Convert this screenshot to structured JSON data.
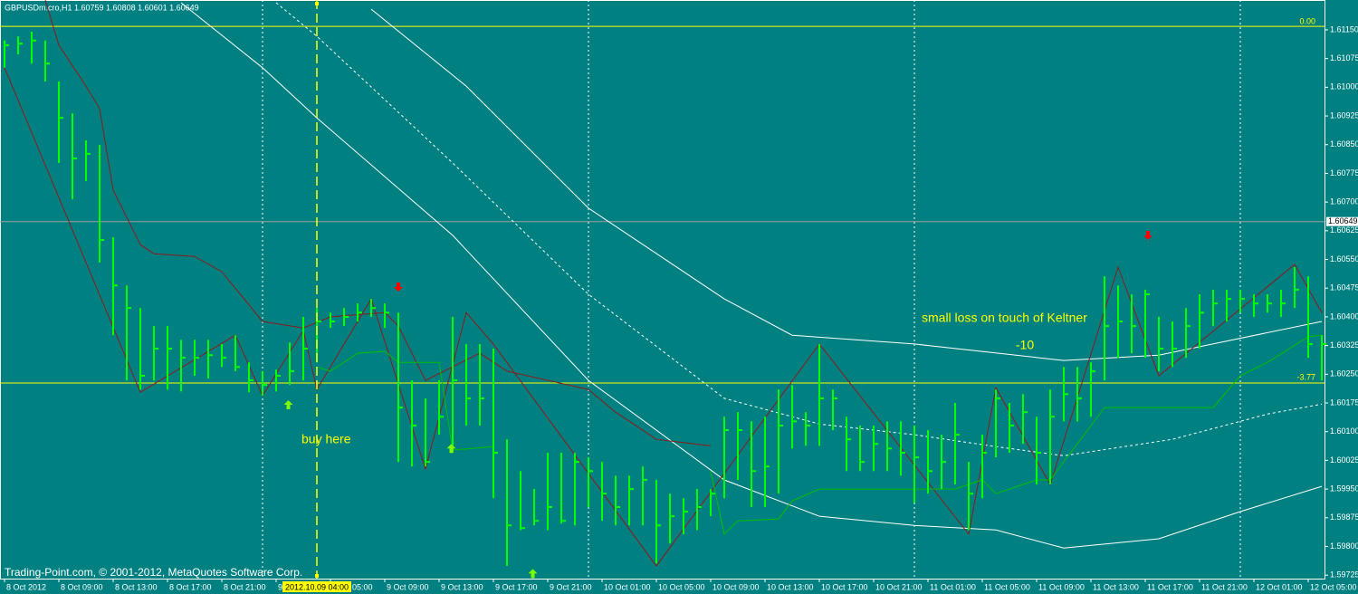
{
  "chart_data": {
    "type": "ohlc",
    "title": "GBPUSDm.cro,H1  1.60759 1.60808 1.60601 1.60649",
    "footer": "Trading-Point.com, © 2001-2012, MetaQuotes Software Corp.",
    "xlim": [
      -0.333,
      97.2
    ],
    "ylim": [
      1.59716,
      1.61228
    ],
    "xticks": [
      {
        "value": 0,
        "label": "8 Oct 2012"
      },
      {
        "value": 4,
        "label": "8 Oct 09:00"
      },
      {
        "value": 8,
        "label": "8 Oct 13:00"
      },
      {
        "value": 12,
        "label": "8 Oct 17:00"
      },
      {
        "value": 16,
        "label": "8 Oct 21:00"
      },
      {
        "value": 20,
        "label": "9"
      },
      {
        "value": 24,
        "label": "05:00"
      },
      {
        "value": 28,
        "label": "9 Oct 09:00"
      },
      {
        "value": 32,
        "label": "9 Oct 13:00"
      },
      {
        "value": 36,
        "label": "9 Oct 17:00"
      },
      {
        "value": 40,
        "label": "9 Oct 21:00"
      },
      {
        "value": 44,
        "label": "10 Oct 01:00"
      },
      {
        "value": 48,
        "label": "10 Oct 05:00"
      },
      {
        "value": 52,
        "label": "10 Oct 09:00"
      },
      {
        "value": 56,
        "label": "10 Oct 13:00"
      },
      {
        "value": 60,
        "label": "10 Oct 17:00"
      },
      {
        "value": 64,
        "label": "10 Oct 21:00"
      },
      {
        "value": 68,
        "label": "11 Oct 01:00"
      },
      {
        "value": 72,
        "label": "11 Oct 05:00"
      },
      {
        "value": 76,
        "label": "11 Oct 09:00"
      },
      {
        "value": 80,
        "label": "11 Oct 13:00"
      },
      {
        "value": 84,
        "label": "11 Oct 17:00"
      },
      {
        "value": 88,
        "label": "11 Oct 21:00"
      },
      {
        "value": 92,
        "label": "12 Oct 01:00"
      },
      {
        "value": 96,
        "label": "12 Oct 05:00"
      }
    ],
    "yticks": [
      {
        "value": 1.6115,
        "label": "1.61150"
      },
      1.61075,
      {
        "value": 1.61,
        "label": "1.61000"
      },
      1.60925,
      {
        "value": 1.6085,
        "label": "1.60850"
      },
      1.60775,
      {
        "value": 1.607,
        "label": "1.60700"
      },
      1.60625,
      {
        "value": 1.6055,
        "label": "1.60550"
      },
      1.60475,
      {
        "value": 1.604,
        "label": "1.60400"
      },
      1.60325,
      {
        "value": 1.6025,
        "label": "1.60250"
      },
      1.60175,
      {
        "value": 1.601,
        "label": "1.60100"
      },
      1.60025,
      {
        "value": 1.5995,
        "label": "1.59950"
      },
      1.59875,
      {
        "value": 1.598,
        "label": "1.59800"
      },
      1.59725
    ],
    "color": "#00ff00",
    "high": [
      1.61122,
      1.61133,
      1.61145,
      1.61122,
      1.61015,
      1.60932,
      1.60861,
      1.60849,
      1.60608,
      1.60482,
      1.60423,
      1.60376,
      1.60376,
      1.6034,
      1.6034,
      1.6034,
      1.60329,
      1.60352,
      1.60281,
      1.60258,
      1.60262,
      1.60333,
      1.604,
      1.60423,
      1.60411,
      1.60423,
      1.60435,
      1.60447,
      1.60435,
      1.60411,
      1.60234,
      1.60187,
      1.60234,
      1.604,
      1.60329,
      1.60329,
      1.60317,
      1.6008,
      1.59997,
      1.5995,
      1.60045,
      1.60045,
      1.60045,
      1.60033,
      1.60021,
      1.59985,
      1.59985,
      1.60009,
      1.59974,
      1.59938,
      1.59926,
      1.5995,
      1.5995,
      1.60139,
      1.60151,
      1.60127,
      1.60139,
      1.6021,
      1.60222,
      1.60151,
      1.60329,
      1.6021,
      1.60139,
      1.60116,
      1.60116,
      1.60127,
      1.60127,
      1.60116,
      1.60104,
      1.60092,
      1.60175,
      1.60021,
      1.60092,
      1.6021,
      1.60175,
      1.60198,
      1.60139,
      1.6021,
      1.60269,
      1.60269,
      1.60281,
      1.60506,
      1.60482,
      1.60459,
      1.60471,
      1.604,
      1.60388,
      1.60423,
      1.60459,
      1.60471,
      1.60471,
      1.60471,
      1.60459,
      1.60459,
      1.60471,
      1.6053,
      1.60506,
      1.60352
    ],
    "low": [
      1.61051,
      1.61086,
      1.61062,
      1.61015,
      1.60802,
      1.60707,
      1.60755,
      1.60542,
      1.60352,
      1.60234,
      1.6021,
      1.60234,
      1.6021,
      1.60205,
      1.60246,
      1.60239,
      1.60269,
      1.60258,
      1.60203,
      1.60194,
      1.60205,
      1.60222,
      1.60234,
      1.60281,
      1.60371,
      1.60376,
      1.60388,
      1.604,
      1.60371,
      1.60021,
      1.60009,
      1.60009,
      1.60092,
      1.60045,
      1.60116,
      1.60116,
      1.59926,
      1.59749,
      1.59843,
      1.59855,
      1.59843,
      1.5986,
      1.59855,
      1.59903,
      1.59867,
      1.59855,
      1.59855,
      1.59855,
      1.59756,
      1.59808,
      1.59832,
      1.59843,
      1.59879,
      1.59926,
      1.59974,
      1.59903,
      1.59903,
      1.59938,
      1.60056,
      1.60063,
      1.60063,
      1.60104,
      1.59997,
      1.59997,
      1.59997,
      1.59997,
      1.59985,
      1.59914,
      1.59938,
      1.5995,
      1.59962,
      1.59843,
      1.59926,
      1.60033,
      1.60045,
      1.60068,
      1.59962,
      1.59962,
      1.60127,
      1.60127,
      1.60139,
      1.60234,
      1.60293,
      1.60305,
      1.60293,
      1.60258,
      1.60269,
      1.60293,
      1.60317,
      1.60376,
      1.60388,
      1.60411,
      1.604,
      1.60411,
      1.604,
      1.60423,
      1.60293,
      1.60234
    ],
    "close": [
      1.6111,
      1.61114,
      1.61122,
      1.61062,
      1.6092,
      1.60814,
      1.60826,
      1.60601,
      1.60482,
      1.60423,
      1.60246,
      1.60317,
      1.60317,
      1.60293,
      1.60293,
      1.603,
      1.60293,
      1.60269,
      1.60234,
      1.60222,
      1.60246,
      1.60258,
      1.60317,
      1.60388,
      1.60388,
      1.604,
      1.60411,
      1.60423,
      1.60411,
      1.60163,
      1.60116,
      1.60021,
      1.60139,
      1.60234,
      1.60187,
      1.60187,
      1.60045,
      1.59855,
      1.59848,
      1.59867,
      1.59903,
      1.59867,
      1.60021,
      1.59997,
      1.59938,
      1.59903,
      1.5995,
      1.59974,
      1.59855,
      1.59879,
      1.59891,
      1.59903,
      1.59938,
      1.60104,
      1.60104,
      1.59997,
      1.60009,
      1.60116,
      1.60127,
      1.60116,
      1.60187,
      1.60187,
      1.6008,
      1.60021,
      1.60068,
      1.60056,
      1.60045,
      1.60033,
      1.59997,
      1.60021,
      1.60092,
      1.59938,
      1.60045,
      1.60187,
      1.60116,
      1.60151,
      1.60045,
      1.60139,
      1.60198,
      1.60187,
      1.60258,
      1.60376,
      1.60388,
      1.60376,
      1.60459,
      1.60317,
      1.60317,
      1.60376,
      1.60411,
      1.60435,
      1.60447,
      1.60447,
      1.60435,
      1.60435,
      1.60435,
      1.60471,
      1.60329,
      1.60329
    ],
    "lines": [
      {
        "color": "#ffffff",
        "dash": false,
        "x": [
          27,
          34,
          43,
          53,
          58,
          67,
          78,
          85,
          97
        ],
        "values": [
          1.61204,
          1.61003,
          1.60684,
          1.60447,
          1.60352,
          1.60329,
          1.60286,
          1.603,
          1.60388
        ]
      },
      {
        "color": "#ffffff",
        "dash": true,
        "x": [
          20,
          23,
          33,
          43,
          53,
          60,
          67,
          73,
          78,
          86,
          93,
          97
        ],
        "values": [
          1.61221,
          1.61133,
          1.60802,
          1.60459,
          1.60187,
          1.6012,
          1.60092,
          1.60061,
          1.60037,
          1.6008,
          1.60146,
          1.60172
        ]
      },
      {
        "color": "#ffffff",
        "dash": false,
        "x": [
          13,
          19,
          23,
          33,
          43,
          53,
          60,
          67,
          73,
          78,
          85,
          91,
          97
        ],
        "values": [
          1.61221,
          1.61051,
          1.6092,
          1.60613,
          1.60234,
          1.59974,
          1.59879,
          1.59855,
          1.59843,
          1.59796,
          1.5982,
          1.59891,
          1.59957
        ]
      },
      {
        "color": "#8b1a1a",
        "dash": false,
        "x": [
          3,
          4,
          6,
          7,
          8,
          10,
          11,
          14,
          16,
          19,
          22,
          24,
          28,
          29,
          31,
          35,
          37,
          43,
          45,
          48,
          52
        ],
        "values": [
          1.61228,
          1.6111,
          1.61003,
          1.60944,
          1.60731,
          1.60589,
          1.60565,
          1.60558,
          1.60518,
          1.60388,
          1.60371,
          1.604,
          1.60411,
          1.60376,
          1.60234,
          1.60305,
          1.60258,
          1.6021,
          1.60151,
          1.6008,
          1.60063
        ]
      },
      {
        "color": "#8b1a1a",
        "dash": false,
        "x": [
          0,
          10,
          17,
          19,
          22,
          23,
          27,
          31,
          34,
          36,
          48,
          60,
          71,
          73,
          77,
          82,
          85,
          95,
          97
        ],
        "values": [
          1.61051,
          1.60203,
          1.60352,
          1.60194,
          1.60364,
          1.6021,
          1.60447,
          1.60002,
          1.60411,
          1.60329,
          1.59749,
          1.60329,
          1.59832,
          1.60215,
          1.59962,
          1.6053,
          1.60246,
          1.60537,
          1.60411
        ]
      },
      {
        "color": "#00c000",
        "dash": false,
        "x": [
          23,
          24,
          26,
          28,
          29,
          32,
          33,
          36
        ],
        "values": [
          1.60269,
          1.60258,
          1.60305,
          1.6031,
          1.60281,
          1.60281,
          1.60052,
          1.60061
        ]
      },
      {
        "color": "#00c000",
        "dash": false,
        "x": [
          52,
          53,
          54,
          57,
          58,
          60,
          70,
          72,
          73,
          76,
          77,
          81,
          89,
          91,
          93,
          96,
          97
        ],
        "values": [
          1.59997,
          1.59832,
          1.59867,
          1.59872,
          1.59919,
          1.5995,
          1.5995,
          1.59974,
          1.59938,
          1.59974,
          1.59974,
          1.60163,
          1.60163,
          1.60246,
          1.60281,
          1.60348,
          1.60352
        ]
      }
    ],
    "separators": [
      19,
      43,
      67,
      91
    ],
    "cursor": {
      "x": 23,
      "label": "2012.10.09 04:00"
    },
    "levels": [
      {
        "value": 1.61159,
        "label": "0.00",
        "color": "#ffff00"
      },
      {
        "value": 1.60227,
        "label": "-3.77",
        "color": "#ffff00"
      }
    ],
    "bid": 1.60649,
    "arrows": [
      {
        "x": 20.9,
        "value": 1.60182,
        "direction": "up",
        "color": "#7cfc00"
      },
      {
        "x": 32.9,
        "value": 1.60068,
        "direction": "up",
        "color": "#7cfc00"
      },
      {
        "x": 38.9,
        "value": 1.59741,
        "direction": "up",
        "color": "#7cfc00"
      },
      {
        "x": 29,
        "value": 1.60466,
        "direction": "down",
        "color": "#ff0000"
      },
      {
        "x": 84.2,
        "value": 1.60601,
        "direction": "down",
        "color": "#ff0000"
      }
    ],
    "buy_note": "buy here",
    "loss_note": "small loss on touch of Keltner",
    "loss_pips": -10
  }
}
